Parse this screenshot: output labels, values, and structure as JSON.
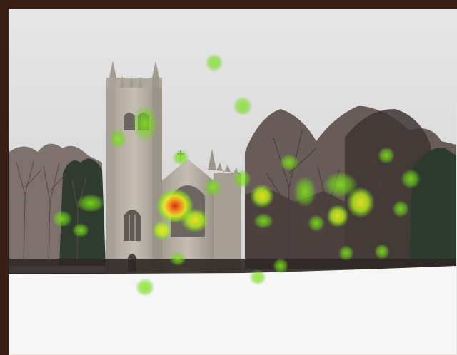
{
  "image": {
    "subject": "",
    "colors": {
      "frame": "#3a1f14",
      "sky": "#dcdcdc",
      "snow": "#f6f6f6",
      "stone": "#b9b1a6",
      "stone_dark": "#8f877c",
      "tree_dark": "#3b2f2b",
      "heat_low": "#7fe61c",
      "heat_mid": "#f5f01e",
      "heat_high": "#e8220d"
    },
    "fixation_levels": [
      {
        "level": 0.95
      },
      {
        "level": 0.55
      },
      {
        "level": 0.45
      },
      {
        "level": 0.5
      },
      {
        "level": 0.3
      },
      {
        "level": 0.3
      },
      {
        "level": 0.35
      },
      {
        "level": 0.35
      },
      {
        "level": 0.5
      },
      {
        "level": 0.55
      },
      {
        "level": 0.6
      },
      {
        "level": 0.35
      },
      {
        "level": 0.3
      },
      {
        "level": 0.35
      },
      {
        "level": 0.3
      },
      {
        "level": 0.3
      },
      {
        "level": 0.3
      },
      {
        "level": 0.25
      },
      {
        "level": 0.3
      },
      {
        "level": 0.3
      },
      {
        "level": 0.3
      },
      {
        "level": 0.3
      },
      {
        "level": 0.3
      },
      {
        "level": 0.3
      }
    ]
  }
}
